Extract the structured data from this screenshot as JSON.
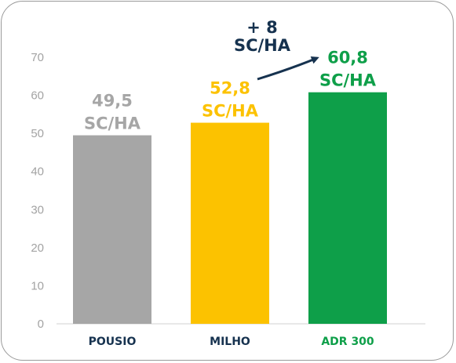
{
  "chart_data": {
    "type": "bar",
    "title": "",
    "xlabel": "",
    "ylabel": "",
    "ylim": [
      0,
      70
    ],
    "yticks": [
      0,
      10,
      20,
      30,
      40,
      50,
      60,
      70
    ],
    "grid": false,
    "categories": [
      "POUSIO",
      "MILHO",
      "ADR 300"
    ],
    "values": [
      49.5,
      52.8,
      60.8
    ],
    "value_labels": [
      {
        "line1": "49,5",
        "line2": "SC/HA"
      },
      {
        "line1": "52,8",
        "line2": "SC/HA"
      },
      {
        "line1": "60,8",
        "line2": "SC/HA"
      }
    ],
    "colors": [
      "#a6a6a6",
      "#fcc200",
      "#0e9f49"
    ],
    "category_label_colors": [
      "#16324f",
      "#16324f",
      "#0e9f49"
    ],
    "annotation": {
      "line1": "+ 8",
      "line2": "SC/HA",
      "color": "#16324f",
      "from": "MILHO",
      "to": "ADR 300"
    }
  }
}
